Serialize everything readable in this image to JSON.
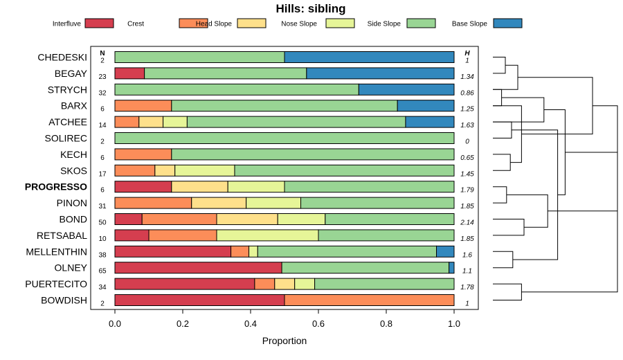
{
  "chart_data": {
    "type": "bar",
    "orientation": "horizontal",
    "stacked": true,
    "title": "Hills: sibling",
    "xlabel": "Proportion",
    "xlim": [
      0,
      1
    ],
    "xticks": [
      "0.0",
      "0.2",
      "0.4",
      "0.6",
      "0.8",
      "1.0"
    ],
    "n_header": "N",
    "h_header": "H",
    "legend": [
      {
        "name": "Interfluve",
        "color": "#D53E4F"
      },
      {
        "name": "Crest",
        "color": "#FC8D59"
      },
      {
        "name": "Head Slope",
        "color": "#FEE08B"
      },
      {
        "name": "Nose Slope",
        "color": "#E6F598"
      },
      {
        "name": "Side Slope",
        "color": "#99D594"
      },
      {
        "name": "Base Slope",
        "color": "#3288BD"
      }
    ],
    "rows": [
      {
        "name": "CHEDESKI",
        "n": "2",
        "h": "1",
        "bold": false,
        "values": [
          0,
          0,
          0,
          0,
          0.5,
          0.5
        ]
      },
      {
        "name": "BEGAY",
        "n": "23",
        "h": "1.34",
        "bold": false,
        "values": [
          0.087,
          0,
          0,
          0,
          0.478,
          0.435
        ]
      },
      {
        "name": "STRYCH",
        "n": "32",
        "h": "0.86",
        "bold": false,
        "values": [
          0,
          0,
          0,
          0,
          0.719,
          0.281
        ]
      },
      {
        "name": "BARX",
        "n": "6",
        "h": "1.25",
        "bold": false,
        "values": [
          0,
          0.167,
          0,
          0,
          0.666,
          0.167
        ]
      },
      {
        "name": "ATCHEE",
        "n": "14",
        "h": "1.63",
        "bold": false,
        "values": [
          0,
          0.071,
          0.071,
          0.071,
          0.644,
          0.143
        ]
      },
      {
        "name": "SOLIREC",
        "n": "2",
        "h": "0",
        "bold": false,
        "values": [
          0,
          0,
          0,
          0,
          1.0,
          0
        ]
      },
      {
        "name": "KECH",
        "n": "6",
        "h": "0.65",
        "bold": false,
        "values": [
          0,
          0.167,
          0,
          0,
          0.833,
          0
        ]
      },
      {
        "name": "SKOS",
        "n": "17",
        "h": "1.45",
        "bold": false,
        "values": [
          0,
          0.118,
          0.059,
          0.176,
          0.647,
          0
        ]
      },
      {
        "name": "PROGRESSO",
        "n": "6",
        "h": "1.79",
        "bold": true,
        "values": [
          0.167,
          0,
          0.166,
          0.167,
          0.5,
          0
        ]
      },
      {
        "name": "PINON",
        "n": "31",
        "h": "1.85",
        "bold": false,
        "values": [
          0,
          0.226,
          0.161,
          0.161,
          0.452,
          0
        ]
      },
      {
        "name": "BOND",
        "n": "50",
        "h": "2.14",
        "bold": false,
        "values": [
          0.08,
          0.22,
          0.18,
          0.14,
          0.38,
          0
        ]
      },
      {
        "name": "RETSABAL",
        "n": "10",
        "h": "1.85",
        "bold": false,
        "values": [
          0.1,
          0.2,
          0,
          0.3,
          0.4,
          0
        ]
      },
      {
        "name": "MELLENTHIN",
        "n": "38",
        "h": "1.6",
        "bold": false,
        "values": [
          0.342,
          0.053,
          0,
          0.026,
          0.527,
          0.052
        ]
      },
      {
        "name": "OLNEY",
        "n": "65",
        "h": "1.1",
        "bold": false,
        "values": [
          0.492,
          0,
          0,
          0,
          0.493,
          0.015
        ]
      },
      {
        "name": "PUERTECITO",
        "n": "34",
        "h": "1.78",
        "bold": false,
        "values": [
          0.412,
          0.059,
          0.059,
          0.059,
          0.411,
          0
        ]
      },
      {
        "name": "BOWDISH",
        "n": "2",
        "h": "1",
        "bold": false,
        "values": [
          0.5,
          0.5,
          0,
          0,
          0,
          0
        ]
      }
    ],
    "dendrogram": {
      "type": "hierarchical-clustering",
      "merges": [
        [
          0,
          1,
          0.1
        ],
        [
          2,
          3,
          0.07
        ],
        [
          4,
          5,
          0.15
        ],
        [
          6,
          7,
          0.14
        ],
        [
          8,
          9,
          0.11
        ],
        [
          10,
          11,
          0.25
        ],
        [
          12,
          13,
          0.16
        ],
        [
          14,
          15,
          0.23
        ],
        [
          "A",
          2,
          0.2
        ],
        [
          3,
          "D",
          0.23
        ],
        [
          "B",
          4,
          0.41
        ],
        [
          "E",
          "F",
          0.44
        ],
        [
          "C",
          "G",
          0.52
        ],
        [
          "I",
          "J",
          0.8
        ],
        [
          "K",
          "M",
          0.58
        ],
        [
          "H",
          "N",
          1.0
        ],
        [
          "L",
          "O",
          1.0
        ]
      ]
    }
  }
}
